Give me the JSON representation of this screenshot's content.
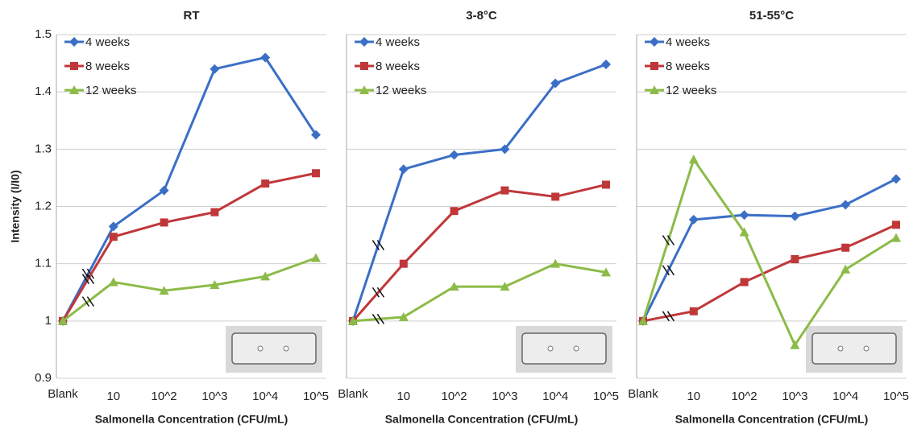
{
  "chart_data": [
    {
      "type": "line",
      "title": "RT",
      "y_label": "Intensity (I/I0)",
      "x_label": "Salmonella Concentration (CFU/mL)",
      "categories": [
        "Blank",
        "10",
        "10^2",
        "10^3",
        "10^4",
        "10^5"
      ],
      "series": [
        {
          "name": "4 weeks",
          "color": "#3b6fc6",
          "marker": "diamond",
          "values": [
            1.0,
            1.165,
            1.228,
            1.44,
            1.46,
            1.325
          ]
        },
        {
          "name": "8 weeks",
          "color": "#c0373a",
          "marker": "square",
          "values": [
            1.0,
            1.147,
            1.172,
            1.19,
            1.24,
            1.258
          ]
        },
        {
          "name": "12 weeks",
          "color": "#8cbb48",
          "marker": "triangle",
          "values": [
            1.0,
            1.068,
            1.053,
            1.063,
            1.078,
            1.11
          ]
        }
      ],
      "ylim": [
        0.9,
        1.5
      ],
      "yticks": [
        0.9,
        1,
        1.1,
        1.2,
        1.3,
        1.4,
        1.5
      ],
      "grid": true,
      "legend": "upper left"
    },
    {
      "type": "line",
      "title": "3-8°C",
      "x_label": "Salmonella Concentration (CFU/mL)",
      "categories": [
        "Blank",
        "10",
        "10^2",
        "10^3",
        "10^4",
        "10^5"
      ],
      "series": [
        {
          "name": "4 weeks",
          "color": "#3b6fc6",
          "marker": "diamond",
          "values": [
            1.0,
            1.265,
            1.29,
            1.3,
            1.415,
            1.448
          ]
        },
        {
          "name": "8 weeks",
          "color": "#c0373a",
          "marker": "square",
          "values": [
            1.0,
            1.1,
            1.192,
            1.228,
            1.217,
            1.238
          ]
        },
        {
          "name": "12 weeks",
          "color": "#8cbb48",
          "marker": "triangle",
          "values": [
            1.0,
            1.007,
            1.06,
            1.06,
            1.1,
            1.085
          ]
        }
      ],
      "ylim": [
        0.9,
        1.5
      ],
      "yticks": [
        0.9,
        1,
        1.1,
        1.2,
        1.3,
        1.4,
        1.5
      ],
      "grid": true,
      "legend": "upper left"
    },
    {
      "type": "line",
      "title": "51-55°C",
      "x_label": "Salmonella Concentration (CFU/mL)",
      "categories": [
        "Blank",
        "10",
        "10^2",
        "10^3",
        "10^4",
        "10^5"
      ],
      "series": [
        {
          "name": "4 weeks",
          "color": "#3b6fc6",
          "marker": "diamond",
          "values": [
            1.0,
            1.177,
            1.185,
            1.183,
            1.203,
            1.248
          ]
        },
        {
          "name": "8 weeks",
          "color": "#c0373a",
          "marker": "square",
          "values": [
            1.0,
            1.017,
            1.068,
            1.108,
            1.128,
            1.168
          ]
        },
        {
          "name": "12 weeks",
          "color": "#8cbb48",
          "marker": "triangle",
          "values": [
            1.0,
            1.282,
            1.155,
            0.958,
            1.09,
            1.145
          ]
        }
      ],
      "ylim": [
        0.9,
        1.5
      ],
      "yticks": [
        0.9,
        1,
        1.1,
        1.2,
        1.3,
        1.4,
        1.5
      ],
      "grid": true,
      "legend": "upper left"
    }
  ]
}
